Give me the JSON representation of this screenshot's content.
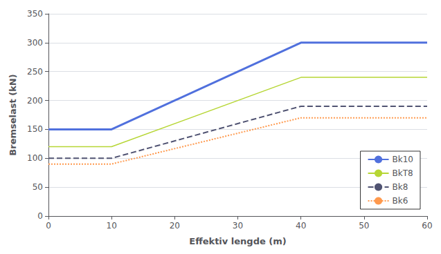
{
  "chart_data": {
    "type": "line",
    "xlabel": "Effektiv lengde (m)",
    "ylabel": "Bremselast (kN)",
    "x": [
      0,
      10,
      40,
      60
    ],
    "series": [
      {
        "name": "Bk10",
        "values": [
          150,
          150,
          300,
          300
        ],
        "line_style": "solid"
      },
      {
        "name": "BkT8",
        "values": [
          120,
          120,
          240,
          240
        ],
        "line_style": "solid"
      },
      {
        "name": "Bk8",
        "values": [
          100,
          100,
          190,
          190
        ],
        "line_style": "dashed"
      },
      {
        "name": "Bk6",
        "values": [
          90,
          90,
          170,
          170
        ],
        "line_style": "dotted"
      }
    ],
    "xlim": [
      0,
      60
    ],
    "ylim": [
      0,
      350
    ],
    "xticks": [
      0,
      10,
      20,
      30,
      40,
      50,
      60
    ],
    "yticks": [
      0,
      50,
      100,
      150,
      200,
      250,
      300,
      350
    ],
    "grid": true,
    "legend": "lower right"
  }
}
